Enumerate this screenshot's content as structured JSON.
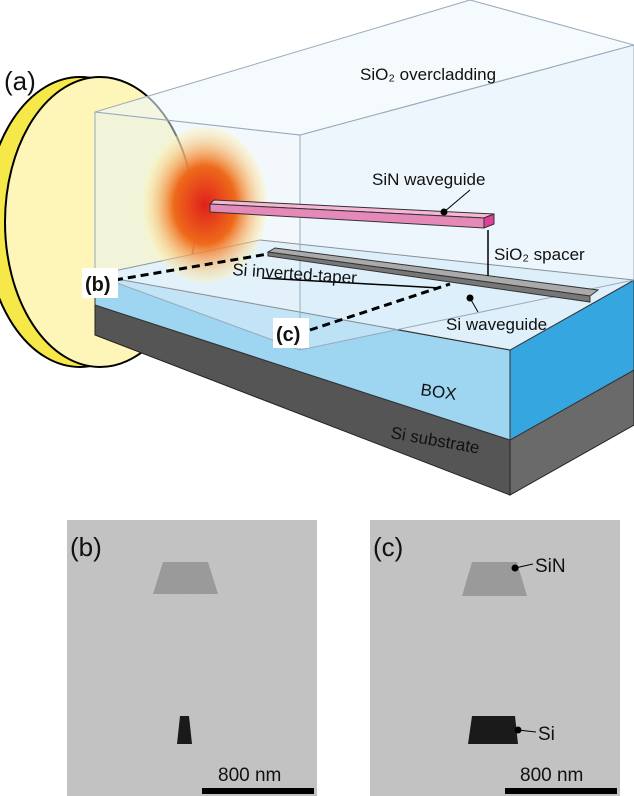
{
  "panel_a": {
    "label": "(a)",
    "overcladding": "SiO₂ overcladding",
    "sin_waveguide": "SiN waveguide",
    "spacer": "SiO₂ spacer",
    "taper": "Si inverted-taper",
    "si_waveguide": "Si waveguide",
    "box": "BOX",
    "substrate": "Si substrate",
    "cut_b": "(b)",
    "cut_c": "(c)"
  },
  "panel_b": {
    "label": "(b)",
    "scale_bar": "800 nm"
  },
  "panel_c": {
    "label": "(c)",
    "sin": "SiN",
    "si": "Si",
    "scale_bar": "800 nm"
  }
}
